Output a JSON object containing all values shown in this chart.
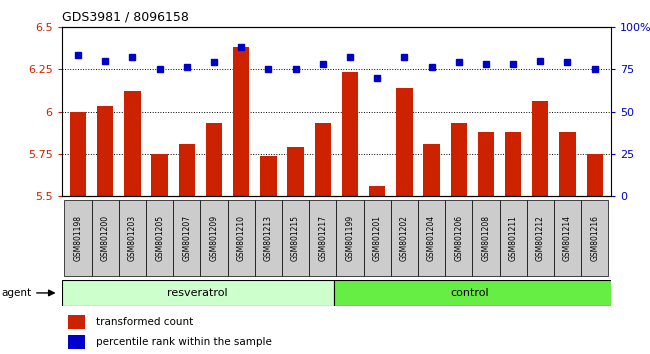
{
  "title": "GDS3981 / 8096158",
  "samples": [
    "GSM801198",
    "GSM801200",
    "GSM801203",
    "GSM801205",
    "GSM801207",
    "GSM801209",
    "GSM801210",
    "GSM801213",
    "GSM801215",
    "GSM801217",
    "GSM801199",
    "GSM801201",
    "GSM801202",
    "GSM801204",
    "GSM801206",
    "GSM801208",
    "GSM801211",
    "GSM801212",
    "GSM801214",
    "GSM801216"
  ],
  "bar_values": [
    6.0,
    6.03,
    6.12,
    5.75,
    5.81,
    5.93,
    6.38,
    5.74,
    5.79,
    5.93,
    6.23,
    5.56,
    6.14,
    5.81,
    5.93,
    5.88,
    5.88,
    6.06,
    5.88,
    5.75
  ],
  "dot_values": [
    83,
    80,
    82,
    75,
    76,
    79,
    88,
    75,
    75,
    78,
    82,
    70,
    82,
    76,
    79,
    78,
    78,
    80,
    79,
    75
  ],
  "bar_color": "#cc2200",
  "dot_color": "#0000cc",
  "ylim_left": [
    5.5,
    6.5
  ],
  "ylim_right": [
    0,
    100
  ],
  "yticks_left": [
    5.5,
    5.75,
    6.0,
    6.25,
    6.5
  ],
  "ytick_labels_left": [
    "5.5",
    "5.75",
    "6",
    "6.25",
    "6.5"
  ],
  "yticks_right": [
    0,
    25,
    50,
    75,
    100
  ],
  "ytick_labels_right": [
    "0",
    "25",
    "50",
    "75",
    "100%"
  ],
  "grid_vals": [
    5.75,
    6.0,
    6.25
  ],
  "n_resveratrol": 10,
  "agent_label": "agent",
  "group1_label": "resveratrol",
  "group2_label": "control",
  "legend_bar_label": "transformed count",
  "legend_dot_label": "percentile rank within the sample",
  "bg_color": "#ffffff",
  "plot_bg_color": "#ffffff",
  "resv_color": "#ccffcc",
  "ctrl_color": "#66ee44",
  "label_box_color": "#cccccc",
  "group_divider": 10,
  "n_total": 20
}
